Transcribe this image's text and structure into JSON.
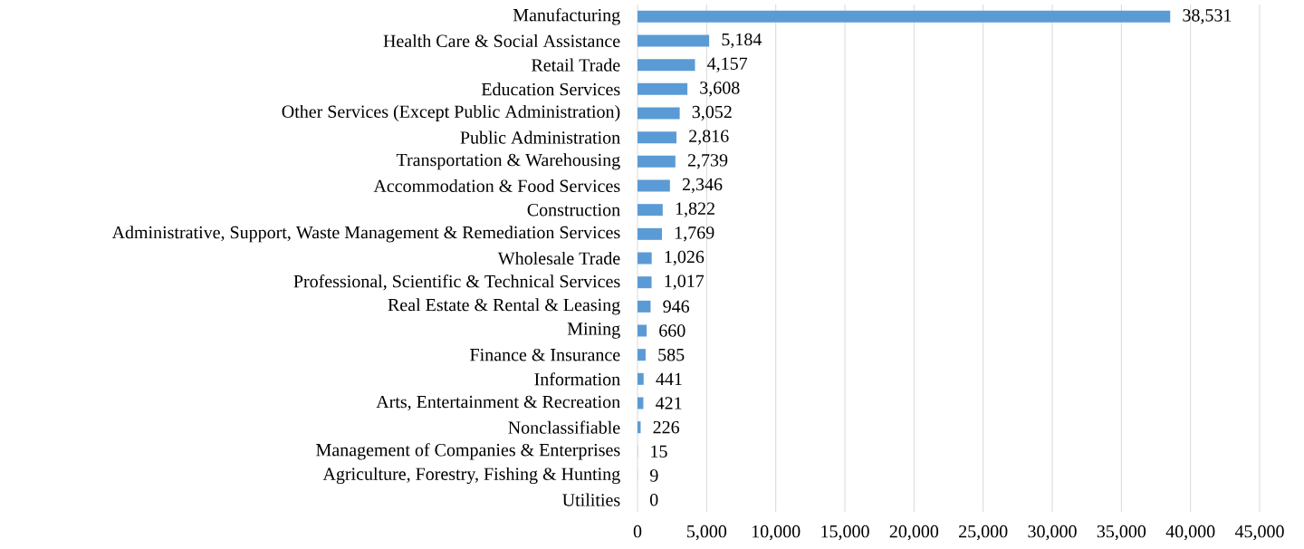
{
  "chart_data": {
    "type": "bar",
    "orientation": "horizontal",
    "color": "#5b9bd5",
    "categories": [
      "Manufacturing",
      "Health Care & Social Assistance",
      "Retail Trade",
      "Education Services",
      "Other Services (Except Public Administration)",
      "Public Administration",
      "Transportation & Warehousing",
      "Accommodation & Food Services",
      "Construction",
      "Administrative, Support, Waste Management & Remediation Services",
      "Wholesale Trade",
      "Professional, Scientific & Technical Services",
      "Real Estate & Rental & Leasing",
      "Mining",
      "Finance & Insurance",
      "Information",
      "Arts, Entertainment & Recreation",
      "Nonclassifiable",
      "Management of Companies & Enterprises",
      "Agriculture, Forestry, Fishing & Hunting",
      "Utilities"
    ],
    "values": [
      38531,
      5184,
      4157,
      3608,
      3052,
      2816,
      2739,
      2346,
      1822,
      1769,
      1026,
      1017,
      946,
      660,
      585,
      441,
      421,
      226,
      15,
      9,
      0
    ],
    "value_labels": [
      "38,531",
      "5,184",
      "4,157",
      "3,608",
      "3,052",
      "2,816",
      "2,739",
      "2,346",
      "1,822",
      "1,769",
      "1,026",
      "1,017",
      "946",
      "660",
      "585",
      "441",
      "421",
      "226",
      "15",
      "9",
      "0"
    ],
    "xlim": [
      0,
      45000
    ],
    "xticks": [
      0,
      {
        "value": 5000,
        "label": "5,000"
      },
      {
        "value": 10000,
        "label": "10,000"
      },
      {
        "value": 15000,
        "label": "15,000"
      },
      {
        "value": 20000,
        "label": "20,000"
      },
      {
        "value": 25000,
        "label": "25,000"
      },
      {
        "value": 30000,
        "label": "30,000"
      },
      {
        "value": 35000,
        "label": "35,000"
      },
      {
        "value": 40000,
        "label": "40,000"
      },
      {
        "value": 45000,
        "label": "45,000"
      }
    ],
    "grid": "x"
  }
}
